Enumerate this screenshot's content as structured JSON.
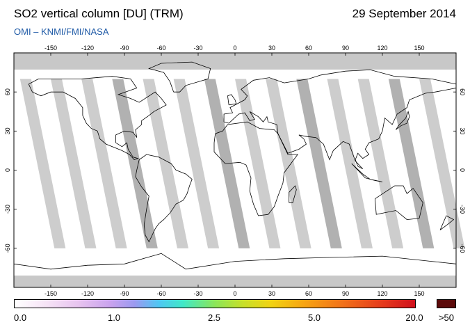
{
  "header": {
    "title": "SO2 vertical column [DU] (TRM)",
    "date": "29 September 2014",
    "source": "OMI  –  KNMI/FMI/NASA"
  },
  "map": {
    "projection": "equirectangular",
    "lon_ticks": [
      "-150",
      "-120",
      "-90",
      "-60",
      "-30",
      "0",
      "30",
      "60",
      "90",
      "120",
      "150"
    ],
    "lat_ticks": [
      "60",
      "30",
      "0",
      "-30",
      "-60"
    ],
    "colors": {
      "no_data": "#c8c8c8",
      "swath_gap": "#a8a8a8",
      "background": "#ffffff",
      "coastline": "#000000"
    }
  },
  "colorbar": {
    "labels": [
      "0.0",
      "1.0",
      "2.5",
      "5.0",
      "20.0",
      ">50"
    ],
    "overflow_color": "#5c0a0a"
  }
}
